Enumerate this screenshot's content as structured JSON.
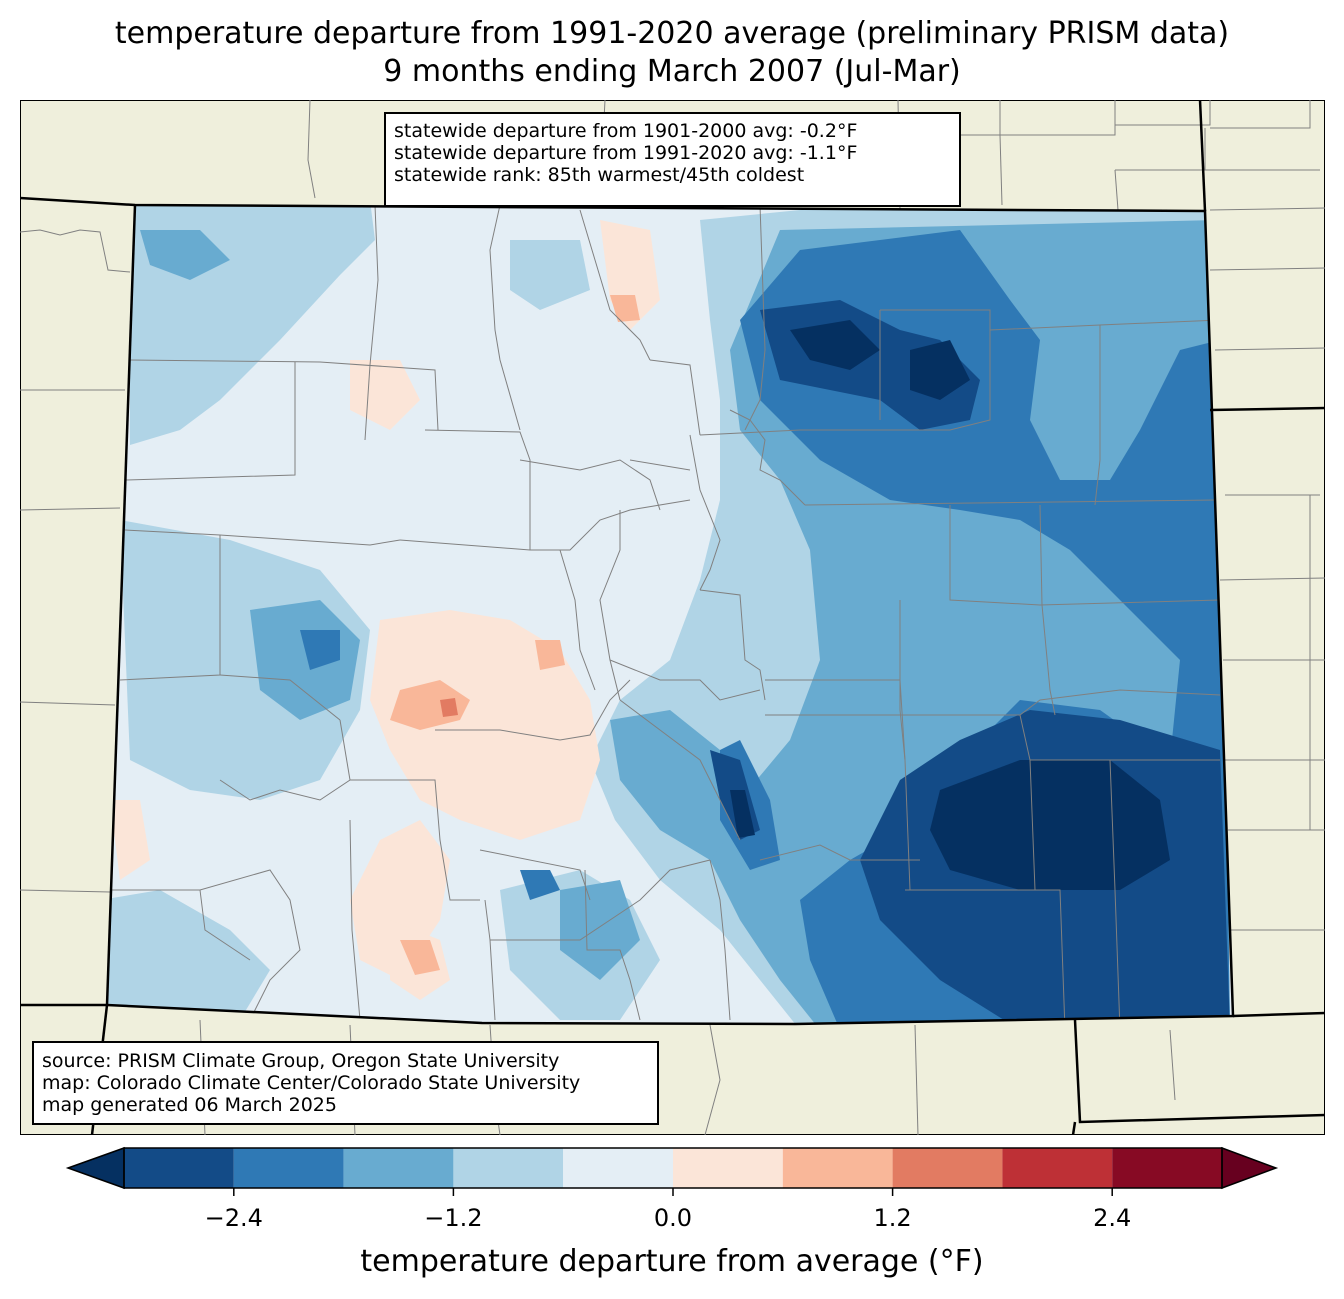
{
  "title_line1": "temperature departure from 1991-2020 average (preliminary PRISM data)",
  "title_line2": "9 months ending March 2007 (Jul-Mar)",
  "stats": [
    "statewide departure from 1901-2000 avg: -0.2°F",
    "statewide departure from 1991-2020 avg: -1.1°F",
    "statewide rank: 85th warmest/45th coldest"
  ],
  "source": [
    "source: PRISM Climate Group, Oregon State University",
    "map: Colorado Climate Center/Colorado State University",
    "map generated 06 March 2025"
  ],
  "colorbar": {
    "label": "temperature departure from average (°F)",
    "boundaries": [
      -3.0,
      -2.4,
      -1.8,
      -1.2,
      -0.6,
      0.0,
      0.6,
      1.2,
      1.8,
      2.4,
      3.0
    ],
    "colors": [
      "#134b87",
      "#2f79b5",
      "#68abd0",
      "#b0d4e6",
      "#e4eef5",
      "#fbe5d8",
      "#f9b799",
      "#e27b62",
      "#be3036",
      "#870a24"
    ],
    "under_color": "#053061",
    "over_color": "#67001f",
    "ticks": [
      "−2.4",
      "−1.2",
      "0.0",
      "1.2",
      "2.4"
    ],
    "tick_values": [
      -2.4,
      -1.2,
      0.0,
      1.2,
      2.4
    ]
  },
  "map_colors": {
    "land": "#efefdc",
    "state_border": "#000000",
    "county_border": "#808080"
  }
}
